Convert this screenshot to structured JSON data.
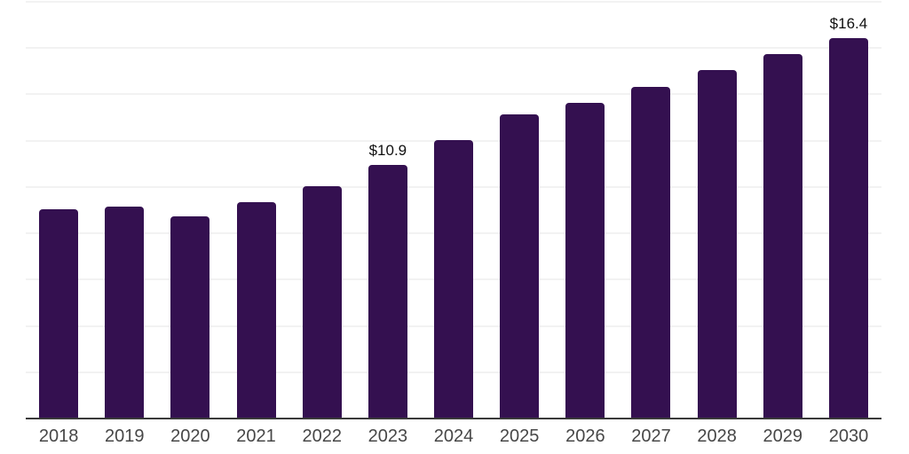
{
  "chart_data": {
    "type": "bar",
    "title": "",
    "xlabel": "",
    "ylabel": "",
    "categories": [
      "2018",
      "2019",
      "2020",
      "2021",
      "2022",
      "2023",
      "2024",
      "2025",
      "2026",
      "2027",
      "2028",
      "2029",
      "2030"
    ],
    "values": [
      9.0,
      9.1,
      8.7,
      9.3,
      10.0,
      10.9,
      12.0,
      13.1,
      13.6,
      14.3,
      15.0,
      15.7,
      16.4
    ],
    "value_labels": [
      "",
      "",
      "",
      "",
      "",
      "$10.9",
      "",
      "",
      "",
      "",
      "",
      "",
      "$16.4"
    ],
    "ylim": [
      0,
      18
    ],
    "gridline_step": 2,
    "grid": "horizontal-only",
    "legend": "none",
    "colors": {
      "bar": "#341050",
      "value_label": "#101010",
      "axis_label": "#474747",
      "gridline": "#f2f2f2",
      "axis_line": "#3a3a3a",
      "background": "#ffffff"
    }
  }
}
